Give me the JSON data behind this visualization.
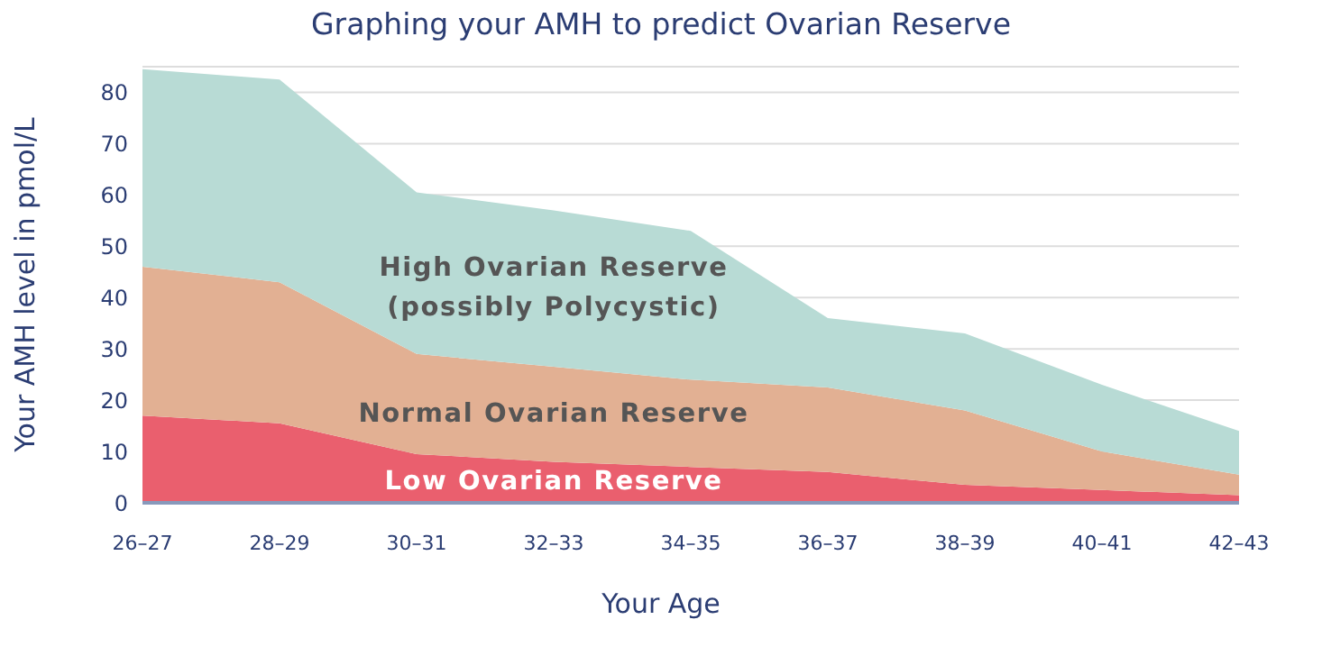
{
  "chart_data": {
    "type": "area",
    "stacked": true,
    "title": "Graphing your AMH to predict Ovarian Reserve",
    "xlabel": "Your Age",
    "ylabel": "Your AMH level in pmol/L",
    "categories": [
      "26–27",
      "28–29",
      "30–31",
      "32–33",
      "34–35",
      "36–37",
      "38–39",
      "40–41",
      "42–43"
    ],
    "series": [
      {
        "name": "Low Ovarian Reserve",
        "color": "#ea5f6e",
        "values": [
          17,
          15.5,
          9.5,
          8,
          7,
          6,
          3.5,
          2.5,
          1.5
        ]
      },
      {
        "name": "Normal Ovarian Reserve",
        "color": "#e2b093",
        "values": [
          29,
          27.5,
          19.5,
          18.5,
          17,
          16.5,
          14.5,
          7.5,
          4
        ]
      },
      {
        "name": "High Ovarian Reserve\n(possibly Polycystic)",
        "color": "#b8dbd5",
        "values": [
          38.5,
          39.5,
          31.5,
          30.5,
          29,
          13.5,
          15,
          13,
          8.5
        ]
      }
    ],
    "ylim": [
      0,
      85
    ],
    "yticks": [
      0,
      10,
      20,
      30,
      40,
      50,
      60,
      70,
      80
    ],
    "grid": "y",
    "legend": false
  }
}
